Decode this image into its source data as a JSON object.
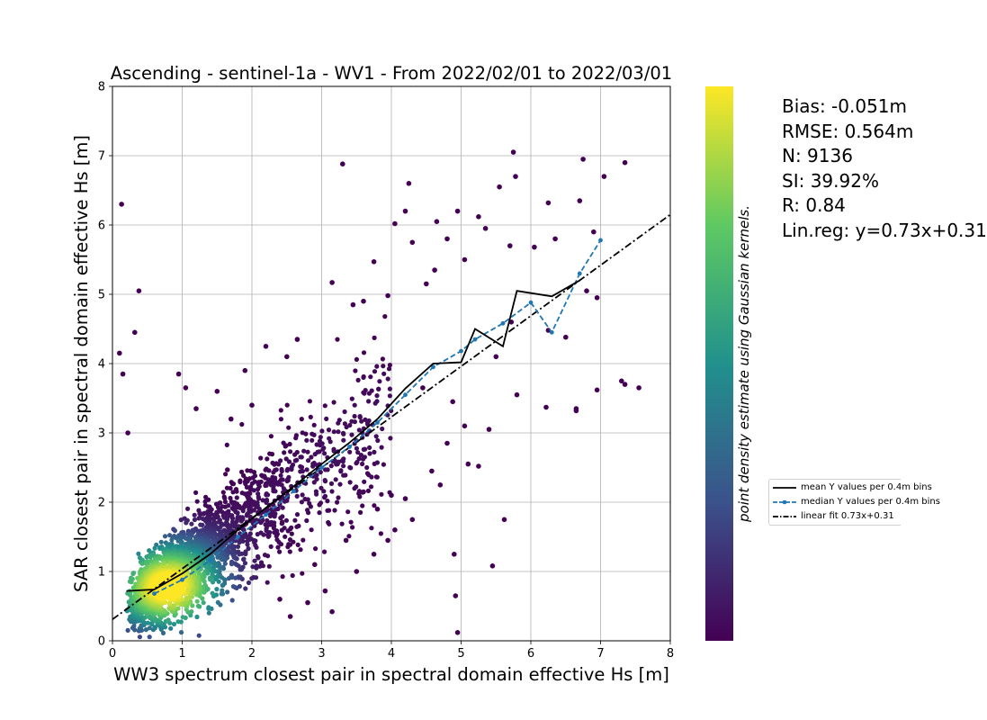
{
  "chart_data": {
    "type": "scatter",
    "title": "Ascending - sentinel-1a - WV1 - From 2022/02/01 to 2022/03/01",
    "xlabel": "WW3 spectrum closest pair in spectral domain effective Hs [m]",
    "ylabel": "SAR closest pair in spectral domain effective Hs [m]",
    "xlim": [
      0,
      8
    ],
    "ylim": [
      0,
      8
    ],
    "xticks": [
      "0",
      "1",
      "2",
      "3",
      "4",
      "5",
      "6",
      "7",
      "8"
    ],
    "yticks": [
      "0",
      "1",
      "2",
      "3",
      "4",
      "5",
      "6",
      "7",
      "8"
    ],
    "grid": true,
    "colorbar_label": "point density estimate using Gaussian kernels.",
    "colormap": [
      "#440154",
      "#3b528b",
      "#21918c",
      "#5ec962",
      "#fde725"
    ],
    "scatter_color_low": "#440154",
    "stats": [
      "Bias: -0.051m",
      "RMSE: 0.564m",
      "N: 9136",
      "SI: 39.92%",
      "R: 0.84",
      "Lin.reg: y=0.73x+0.31"
    ],
    "legend_position": "right, outside axes",
    "series": [
      {
        "name": "mean Y values per 0.4m bins",
        "style": "solid",
        "color": "#000000",
        "x": [
          0.2,
          0.6,
          1.0,
          1.4,
          1.8,
          2.2,
          2.6,
          3.0,
          3.4,
          3.8,
          4.2,
          4.6,
          5.0,
          5.2,
          5.6,
          5.8,
          6.3,
          6.7
        ],
        "y": [
          0.72,
          0.74,
          0.97,
          1.25,
          1.6,
          1.92,
          2.23,
          2.55,
          2.86,
          3.2,
          3.64,
          4.0,
          4.02,
          4.5,
          4.25,
          5.05,
          4.97,
          5.2
        ]
      },
      {
        "name": "median Y values per 0.4m bins",
        "style": "dashed",
        "marker": "dot",
        "color": "#1f77b4",
        "x": [
          0.6,
          1.0,
          1.4,
          1.8,
          2.2,
          2.6,
          3.0,
          3.4,
          3.8,
          4.2,
          4.6,
          5.0,
          5.2,
          5.6,
          6.0,
          6.3,
          6.7,
          7.0
        ],
        "y": [
          0.68,
          0.88,
          1.16,
          1.5,
          1.82,
          2.16,
          2.5,
          2.8,
          3.15,
          3.55,
          3.95,
          4.18,
          4.35,
          4.58,
          4.88,
          4.45,
          5.3,
          5.78
        ]
      },
      {
        "name": "linear fit 0.73x+0.31",
        "style": "dashdot",
        "color": "#000000",
        "slope": 0.73,
        "intercept": 0.31
      }
    ],
    "scatter_outliers": [
      [
        0.1,
        4.15
      ],
      [
        0.13,
        6.3
      ],
      [
        0.15,
        3.85
      ],
      [
        0.32,
        4.45
      ],
      [
        0.38,
        5.05
      ],
      [
        0.22,
        3.0
      ],
      [
        0.95,
        3.85
      ],
      [
        1.05,
        3.65
      ],
      [
        1.2,
        3.35
      ],
      [
        1.5,
        3.6
      ],
      [
        1.9,
        3.9
      ],
      [
        2.2,
        4.25
      ],
      [
        2.5,
        4.1
      ],
      [
        2.65,
        4.35
      ],
      [
        2.0,
        3.4
      ],
      [
        1.7,
        3.2
      ],
      [
        3.3,
        6.88
      ],
      [
        3.15,
        5.17
      ],
      [
        3.45,
        4.85
      ],
      [
        3.75,
        5.47
      ],
      [
        3.6,
        4.9
      ],
      [
        3.95,
        4.98
      ],
      [
        4.05,
        6.02
      ],
      [
        4.25,
        6.6
      ],
      [
        4.2,
        6.2
      ],
      [
        4.3,
        5.75
      ],
      [
        4.5,
        5.15
      ],
      [
        4.62,
        5.35
      ],
      [
        4.65,
        6.05
      ],
      [
        4.8,
        5.8
      ],
      [
        4.95,
        6.2
      ],
      [
        5.05,
        5.5
      ],
      [
        5.25,
        6.12
      ],
      [
        5.35,
        5.95
      ],
      [
        5.55,
        6.55
      ],
      [
        5.75,
        7.05
      ],
      [
        5.78,
        6.7
      ],
      [
        5.7,
        5.7
      ],
      [
        6.05,
        5.68
      ],
      [
        6.25,
        6.32
      ],
      [
        6.35,
        5.8
      ],
      [
        6.7,
        6.35
      ],
      [
        6.75,
        6.95
      ],
      [
        6.9,
        5.9
      ],
      [
        7.05,
        6.7
      ],
      [
        7.35,
        6.9
      ],
      [
        6.95,
        4.95
      ],
      [
        6.8,
        5.05
      ],
      [
        7.3,
        3.75
      ],
      [
        7.35,
        3.7
      ],
      [
        7.55,
        3.65
      ],
      [
        6.95,
        3.62
      ],
      [
        6.65,
        3.35
      ],
      [
        6.65,
        3.32
      ],
      [
        6.22,
        3.37
      ],
      [
        6.25,
        4.48
      ],
      [
        6.5,
        4.38
      ],
      [
        5.8,
        3.55
      ],
      [
        5.72,
        4.6
      ],
      [
        5.5,
        4.1
      ],
      [
        5.62,
        1.75
      ],
      [
        5.45,
        1.08
      ],
      [
        4.9,
        1.25
      ],
      [
        4.92,
        0.65
      ],
      [
        4.95,
        0.12
      ],
      [
        4.3,
        1.75
      ],
      [
        4.2,
        2.05
      ],
      [
        4.05,
        1.6
      ],
      [
        4.7,
        2.25
      ],
      [
        4.8,
        2.85
      ],
      [
        5.1,
        2.55
      ],
      [
        5.25,
        2.52
      ],
      [
        3.15,
        0.42
      ],
      [
        3.5,
        1.0
      ],
      [
        3.75,
        1.25
      ],
      [
        3.95,
        1.45
      ],
      [
        3.05,
        0.72
      ],
      [
        2.9,
        1.1
      ],
      [
        2.4,
        0.6
      ],
      [
        2.55,
        0.35
      ],
      [
        2.8,
        0.55
      ],
      [
        3.6,
        2.15
      ],
      [
        3.35,
        1.45
      ],
      [
        4.58,
        2.45
      ],
      [
        5.05,
        3.1
      ],
      [
        5.4,
        3.05
      ],
      [
        4.88,
        3.45
      ],
      [
        4.45,
        3.65
      ],
      [
        4.0,
        2.1
      ],
      [
        3.8,
        1.9
      ]
    ],
    "scatter_density_points": 2600
  }
}
